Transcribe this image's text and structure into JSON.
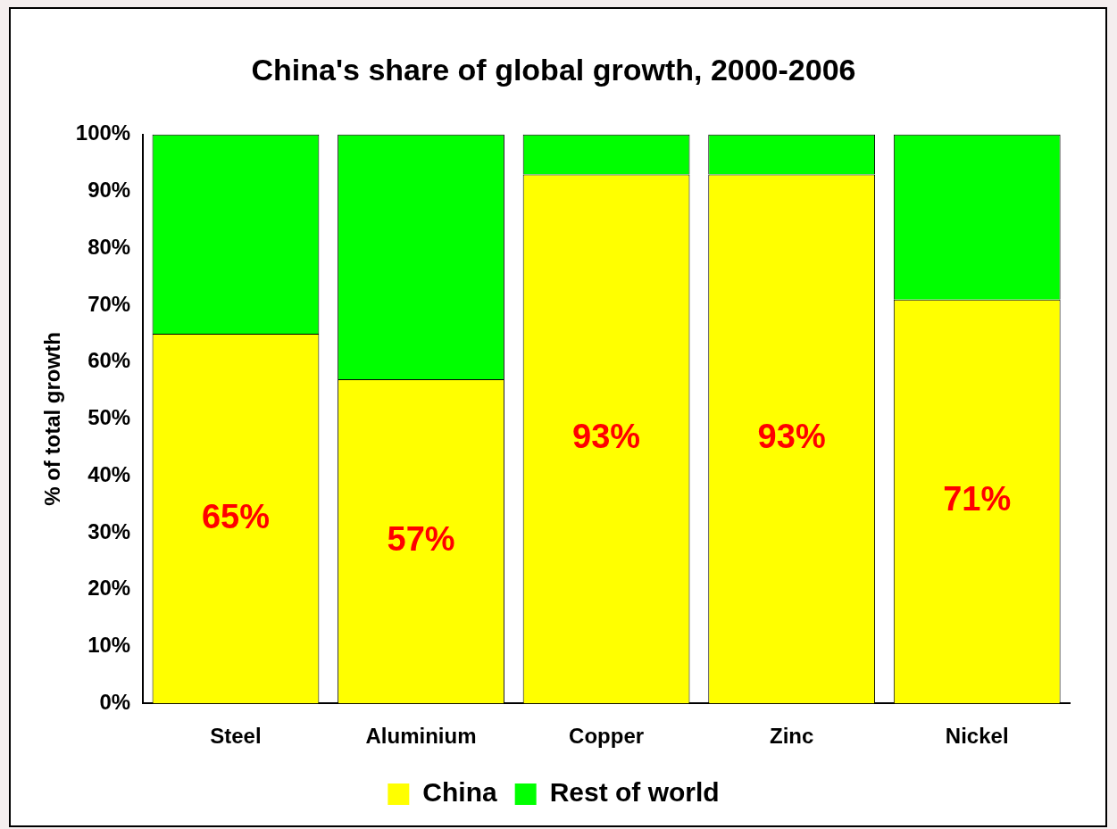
{
  "chart_data": {
    "type": "bar",
    "title": "China's share of global growth, 2000-2006",
    "ylabel": "% of total growth",
    "categories": [
      "Steel",
      "Aluminium",
      "Copper",
      "Zinc",
      "Nickel"
    ],
    "stacked": true,
    "series": [
      {
        "name": "China",
        "color": "#ffff00",
        "values": [
          65,
          57,
          93,
          93,
          71
        ],
        "value_labels": [
          "65%",
          "57%",
          "93%",
          "93%",
          "71%"
        ]
      },
      {
        "name": "Rest of world",
        "color": "#00ff00",
        "values": [
          35,
          43,
          7,
          7,
          29
        ]
      }
    ],
    "ylim": [
      0,
      100
    ],
    "yticks": [
      {
        "value": 0,
        "label": "0%"
      },
      {
        "value": 10,
        "label": "10%"
      },
      {
        "value": 20,
        "label": "20%"
      },
      {
        "value": 30,
        "label": "30%"
      },
      {
        "value": 40,
        "label": "40%"
      },
      {
        "value": 50,
        "label": "50%"
      },
      {
        "value": 60,
        "label": "60%"
      },
      {
        "value": 70,
        "label": "70%"
      },
      {
        "value": 80,
        "label": "80%"
      },
      {
        "value": 90,
        "label": "90%"
      },
      {
        "value": 100,
        "label": "100%"
      }
    ],
    "grid": false,
    "legend": "bottom"
  }
}
